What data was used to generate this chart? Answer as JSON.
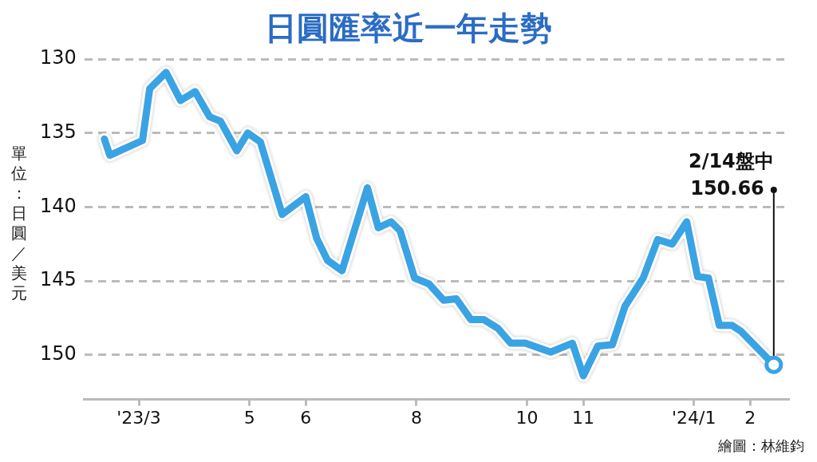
{
  "chart_data": {
    "type": "line",
    "title": "日圓匯率近一年走勢",
    "ylabel": "單位：日圓／美元",
    "x": [
      "2023-02-10",
      "2023-02-13",
      "2023-03-03",
      "2023-03-07",
      "2023-03-16",
      "2023-03-24",
      "2023-04-01",
      "2023-04-09",
      "2023-04-15",
      "2023-04-24",
      "2023-04-30",
      "2023-05-07",
      "2023-05-19",
      "2023-06-01",
      "2023-06-07",
      "2023-06-13",
      "2023-06-21",
      "2023-07-05",
      "2023-07-11",
      "2023-07-18",
      "2023-07-23",
      "2023-07-31",
      "2023-08-08",
      "2023-08-16",
      "2023-08-23",
      "2023-08-31",
      "2023-09-07",
      "2023-09-15",
      "2023-09-22",
      "2023-09-30",
      "2023-10-14",
      "2023-10-26",
      "2023-11-01",
      "2023-11-09",
      "2023-11-17",
      "2023-11-24",
      "2023-12-04",
      "2023-12-12",
      "2023-12-20",
      "2023-12-28",
      "2024-01-03",
      "2024-01-09",
      "2024-01-15",
      "2024-01-22",
      "2024-01-27",
      "2024-02-14"
    ],
    "series": [
      {
        "color": "#3aa3e3",
        "values": [
          135.4,
          136.5,
          135.5,
          132.0,
          130.9,
          132.8,
          132.2,
          133.9,
          134.2,
          136.2,
          135.0,
          135.6,
          140.5,
          139.3,
          142.1,
          143.6,
          144.3,
          138.7,
          141.4,
          141.0,
          141.6,
          144.8,
          145.2,
          146.3,
          146.2,
          147.6,
          147.6,
          148.2,
          149.2,
          149.2,
          149.8,
          149.2,
          151.4,
          149.4,
          149.3,
          146.7,
          144.8,
          142.2,
          142.5,
          141.0,
          144.7,
          144.8,
          148.0,
          148.0,
          148.4,
          150.66
        ]
      }
    ],
    "xlim": [
      "2023-01-30",
      "2024-02-22"
    ],
    "xticks": [
      {
        "value": "2023-03-01",
        "label": "'23/3"
      },
      {
        "value": "2023-05-01",
        "label": "5"
      },
      {
        "value": "2023-06-01",
        "label": "6"
      },
      {
        "value": "2023-08-01",
        "label": "8"
      },
      {
        "value": "2023-10-01",
        "label": "10"
      },
      {
        "value": "2023-11-01",
        "label": "11"
      },
      {
        "value": "2024-01-01",
        "label": "'24/1"
      },
      {
        "value": "2024-02-01",
        "label": "2"
      }
    ],
    "ylim": [
      153,
      130
    ],
    "yticks": [
      130,
      135,
      140,
      145,
      150
    ],
    "grid": "y",
    "legend": false,
    "marker": "none",
    "line_style": "solid",
    "annotations": [
      {
        "text": "2/14盤中\n150.66",
        "x": "2024-02-14",
        "y": 150.66
      },
      "繪圖：林維鈞"
    ]
  }
}
